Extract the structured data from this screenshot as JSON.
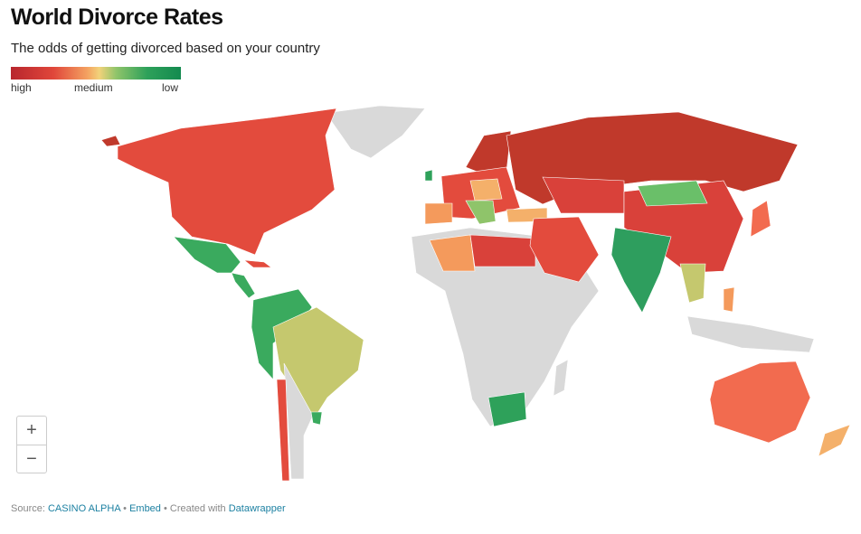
{
  "header": {
    "title": "World Divorce Rates",
    "subtitle": "The odds of getting divorced based on your country"
  },
  "legend": {
    "labels": [
      "high",
      "medium",
      "low"
    ]
  },
  "zoom": {
    "in": "+",
    "out": "−"
  },
  "footer": {
    "source_label": "Source:",
    "source": "CASINO ALPHA",
    "separator": "•",
    "embed": "Embed",
    "created": "• Created with",
    "tool": "Datawrapper"
  }
}
